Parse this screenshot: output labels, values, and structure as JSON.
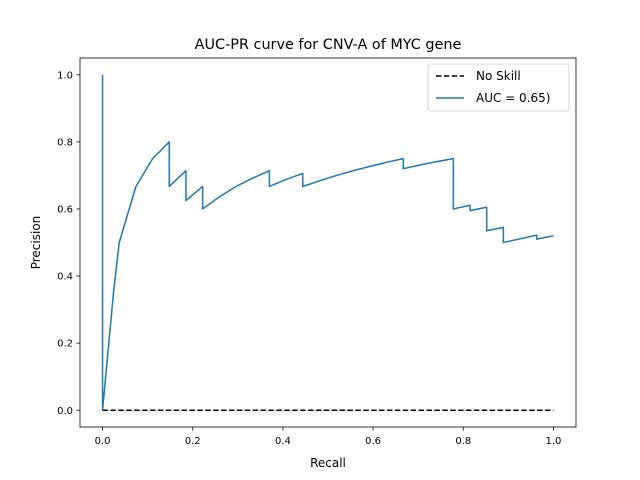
{
  "chart_data": {
    "type": "line",
    "title": "AUC-PR curve for CNV-A of MYC gene",
    "xlabel": "Recall",
    "ylabel": "Precision",
    "xlim": [
      -0.05,
      1.05
    ],
    "ylim": [
      -0.05,
      1.05
    ],
    "xticks": [
      0.0,
      0.2,
      0.4,
      0.6,
      0.8,
      1.0
    ],
    "yticks": [
      0.0,
      0.2,
      0.4,
      0.6,
      0.8,
      1.0
    ],
    "xtick_labels": [
      "0.0",
      "0.2",
      "0.4",
      "0.6",
      "0.8",
      "1.0"
    ],
    "ytick_labels": [
      "0.0",
      "0.2",
      "0.4",
      "0.6",
      "0.8",
      "1.0"
    ],
    "grid": false,
    "legend_position": "top-right",
    "series": [
      {
        "name": "No Skill",
        "color": "#000000",
        "dash": true,
        "x": [
          0.0,
          1.0
        ],
        "y": [
          0.0,
          0.0
        ]
      },
      {
        "name": "AUC = 0.65)",
        "color": "#1f77b4",
        "dash": false,
        "x": [
          0.0,
          0.0,
          0.0,
          0.025,
          0.037,
          0.074,
          0.111,
          0.148,
          0.148,
          0.185,
          0.185,
          0.222,
          0.222,
          0.259,
          0.296,
          0.333,
          0.37,
          0.37,
          0.407,
          0.444,
          0.444,
          0.481,
          0.519,
          0.556,
          0.593,
          0.63,
          0.667,
          0.667,
          0.704,
          0.741,
          0.778,
          0.778,
          0.815,
          0.815,
          0.852,
          0.852,
          0.889,
          0.889,
          0.926,
          0.963,
          0.963,
          1.0
        ],
        "y": [
          1.0,
          0.0,
          0.0,
          0.36,
          0.5,
          0.667,
          0.75,
          0.8,
          0.667,
          0.714,
          0.625,
          0.667,
          0.6,
          0.636,
          0.667,
          0.692,
          0.714,
          0.667,
          0.688,
          0.706,
          0.667,
          0.684,
          0.7,
          0.714,
          0.727,
          0.739,
          0.75,
          0.72,
          0.731,
          0.741,
          0.75,
          0.6,
          0.611,
          0.595,
          0.605,
          0.535,
          0.545,
          0.5,
          0.511,
          0.522,
          0.51,
          0.52
        ]
      }
    ]
  }
}
